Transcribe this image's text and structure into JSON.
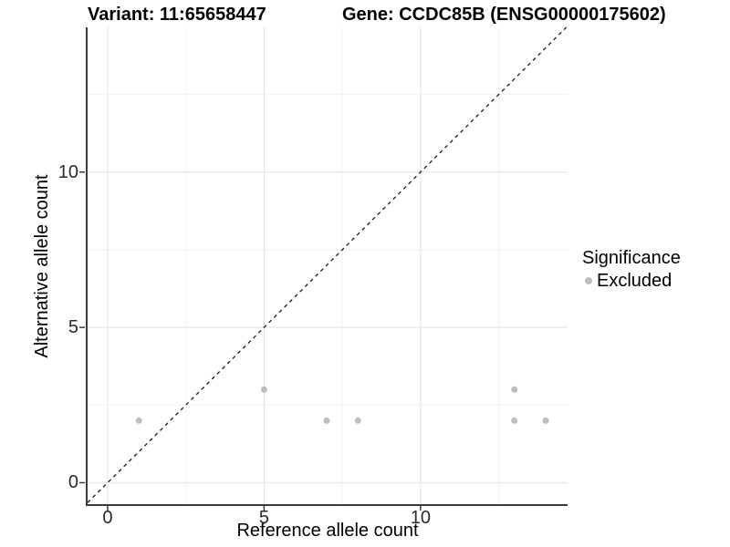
{
  "titles": {
    "variant": "Variant: 11:65658447",
    "gene": "Gene: CCDC85B (ENSG00000175602)"
  },
  "chart_data": {
    "type": "scatter",
    "title_left": "Variant: 11:65658447",
    "title_right": "Gene: CCDC85B (ENSG00000175602)",
    "xlabel": "Reference allele count",
    "ylabel": "Alternative allele count",
    "x_ticks": [
      0,
      5,
      10
    ],
    "y_ticks": [
      0,
      5,
      10
    ],
    "x_minor_gridlines": [
      2.5,
      7.5,
      12.5
    ],
    "y_minor_gridlines": [
      2.5,
      7.5,
      12.5
    ],
    "xlim": [
      -0.64,
      14.7
    ],
    "ylim": [
      -0.69,
      14.66
    ],
    "grid": true,
    "identity_line": {
      "style": "dashed",
      "from": -0.64,
      "to": 14.66,
      "color": "#1a1a1a"
    },
    "series": [
      {
        "name": "Excluded",
        "color": "#bebebe",
        "points": [
          {
            "x": 1,
            "y": 2
          },
          {
            "x": 5,
            "y": 3
          },
          {
            "x": 7,
            "y": 2
          },
          {
            "x": 8,
            "y": 2
          },
          {
            "x": 13,
            "y": 3
          },
          {
            "x": 13,
            "y": 2
          },
          {
            "x": 14,
            "y": 2
          }
        ]
      }
    ],
    "legend": {
      "title": "Significance",
      "position": "right",
      "entries": [
        {
          "label": "Excluded",
          "color": "#bebebe"
        }
      ]
    }
  },
  "colors": {
    "background": "#ffffff",
    "grid_major": "#e7e7e7",
    "grid_minor": "#f2f2f2",
    "axis_line": "#3a3a3a",
    "tick_mark": "#3a3a3a",
    "point": "#bebebe",
    "text": "#000000"
  }
}
